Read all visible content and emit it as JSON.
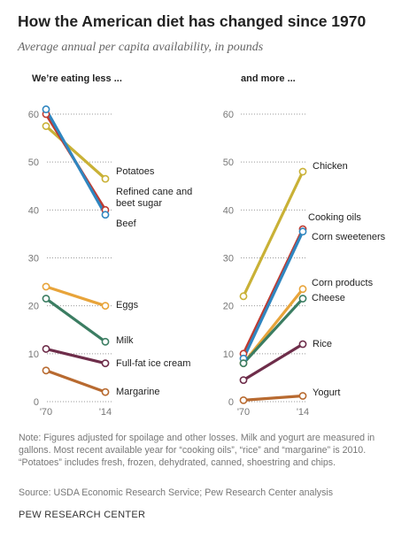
{
  "title": "How the American diet has changed since 1970",
  "subtitle": "Average annual per capita availability, in pounds",
  "note": "Note: Figures adjusted for spoilage and other losses. Milk and yogurt are measured in gallons. Most recent available year for “cooking oils”, “rice” and “margarine” is 2010. “Potatoes” includes fresh, frozen, dehydrated, canned, shoestring and chips.",
  "source": "Source: USDA Economic Research Service; Pew Research Center analysis",
  "brand": "PEW RESEARCH CENTER",
  "chart_data": [
    {
      "type": "line",
      "title": "We’re eating less ...",
      "x": [
        "'70",
        "'14"
      ],
      "ylim": [
        0,
        60
      ],
      "yticks": [
        0,
        10,
        20,
        30,
        40,
        50,
        60
      ],
      "grid": true,
      "series": [
        {
          "name": "Potatoes",
          "values": [
            57.5,
            46.5
          ],
          "color": "#c9b136"
        },
        {
          "name": "Refined cane and beet sugar",
          "values": [
            60,
            40
          ],
          "color": "#bf3a30"
        },
        {
          "name": "Beef",
          "values": [
            61,
            39
          ],
          "color": "#2f86c0"
        },
        {
          "name": "Eggs",
          "values": [
            24,
            20
          ],
          "color": "#e8a43a"
        },
        {
          "name": "Milk",
          "values": [
            21.5,
            12.5
          ],
          "color": "#3b7d62"
        },
        {
          "name": "Full-fat ice cream",
          "values": [
            11,
            8
          ],
          "color": "#6e2d4a"
        },
        {
          "name": "Margarine",
          "values": [
            6.5,
            2
          ],
          "color": "#b86a30"
        }
      ]
    },
    {
      "type": "line",
      "title": "and more ...",
      "x": [
        "'70",
        "'14"
      ],
      "ylim": [
        0,
        60
      ],
      "yticks": [
        0,
        10,
        20,
        30,
        40,
        50,
        60
      ],
      "grid": true,
      "series": [
        {
          "name": "Chicken",
          "values": [
            22,
            48
          ],
          "color": "#c9b136"
        },
        {
          "name": "Cooking oils",
          "values": [
            10,
            36
          ],
          "color": "#bf3a30"
        },
        {
          "name": "Corn sweeteners",
          "values": [
            9,
            35.5
          ],
          "color": "#2f86c0"
        },
        {
          "name": "Corn products",
          "values": [
            8,
            23.5
          ],
          "color": "#e8a43a"
        },
        {
          "name": "Cheese",
          "values": [
            8,
            21.5
          ],
          "color": "#3b7d62"
        },
        {
          "name": "Rice",
          "values": [
            4.5,
            12
          ],
          "color": "#6e2d4a"
        },
        {
          "name": "Yogurt",
          "values": [
            0.3,
            1.2
          ],
          "color": "#b86a30"
        }
      ]
    }
  ]
}
